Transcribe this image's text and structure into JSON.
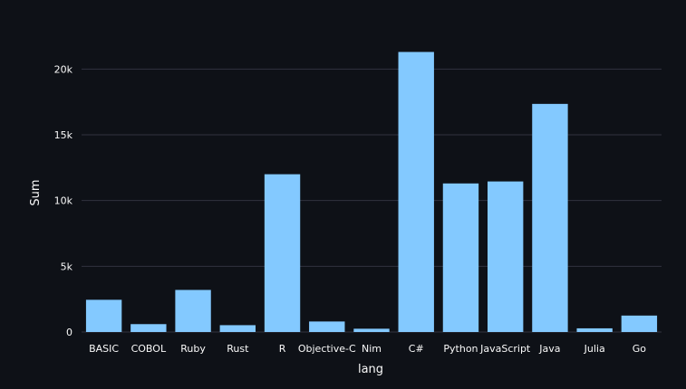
{
  "chart_data": {
    "type": "bar",
    "title": "",
    "xlabel": "lang",
    "ylabel": "Sum",
    "categories": [
      "BASIC",
      "COBOL",
      "Ruby",
      "Rust",
      "R",
      "Objective-C",
      "Nim",
      "C#",
      "Python",
      "JavaScript",
      "Java",
      "Julia",
      "Go"
    ],
    "values": [
      2450,
      600,
      3200,
      520,
      12000,
      800,
      250,
      21300,
      11300,
      11450,
      17350,
      280,
      1250
    ],
    "ylim": [
      0,
      22500
    ],
    "yticks": [
      0,
      5000,
      10000,
      15000,
      20000
    ],
    "ytick_labels": [
      "0",
      "5k",
      "10k",
      "15k",
      "20k"
    ],
    "grid": true,
    "colors": {
      "background": "#0e1117",
      "bar": "#83c9ff",
      "grid": "#31333f",
      "text": "#fafafa"
    }
  }
}
